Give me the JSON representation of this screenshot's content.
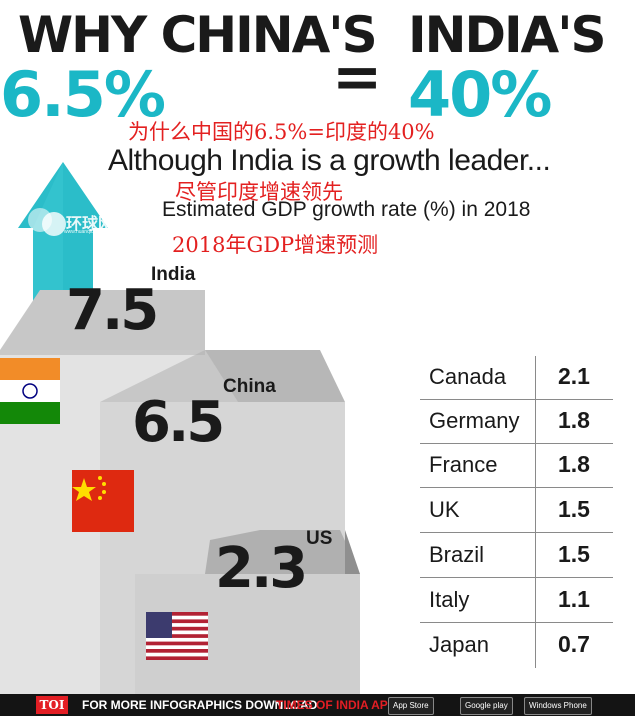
{
  "headline": {
    "line1_left": "WHY CHINA'S",
    "line1_right": "INDIA'S",
    "equals": "=",
    "china_value": "6.5%",
    "india_value": "40%"
  },
  "chinese": {
    "title": "为什么中国的6.5%=印度的40%",
    "subtitle": "尽管印度增速领先",
    "chart_label": "2018年GDP增速预测"
  },
  "subtitle": "Although India is a growth leader...",
  "chart_caption": "Estimated GDP growth rate (%) in 2018",
  "watermark": {
    "name": "环球网",
    "url": "www.huanqiu.com"
  },
  "chart_data": {
    "type": "bar",
    "title": "Estimated GDP growth rate (%) in 2018",
    "steps": [
      {
        "country": "India",
        "value": 7.5,
        "label": "7.5"
      },
      {
        "country": "China",
        "value": 6.5,
        "label": "6.5"
      },
      {
        "country": "US",
        "value": 2.3,
        "label": "2.3"
      }
    ],
    "table": [
      {
        "country": "Canada",
        "value": "2.1"
      },
      {
        "country": "Germany",
        "value": "1.8"
      },
      {
        "country": "France",
        "value": "1.8"
      },
      {
        "country": "UK",
        "value": "1.5"
      },
      {
        "country": "Brazil",
        "value": "1.5"
      },
      {
        "country": "Italy",
        "value": "1.1"
      },
      {
        "country": "Japan",
        "value": "0.7"
      }
    ]
  },
  "footer": {
    "brand": "TOI",
    "text": "FOR MORE  INFOGRAPHICS DOWNLOAD",
    "app": "TIMES OF INDIA APP",
    "app_store": "App Store",
    "google_play": "Google play",
    "windows": "Windows Phone"
  },
  "colors": {
    "teal": "#1bb7c6",
    "chinese_red": "#e32020",
    "dark": "#1a1a1a",
    "step_light": "#d9d9d9",
    "step_dark": "#a9a9a9"
  }
}
